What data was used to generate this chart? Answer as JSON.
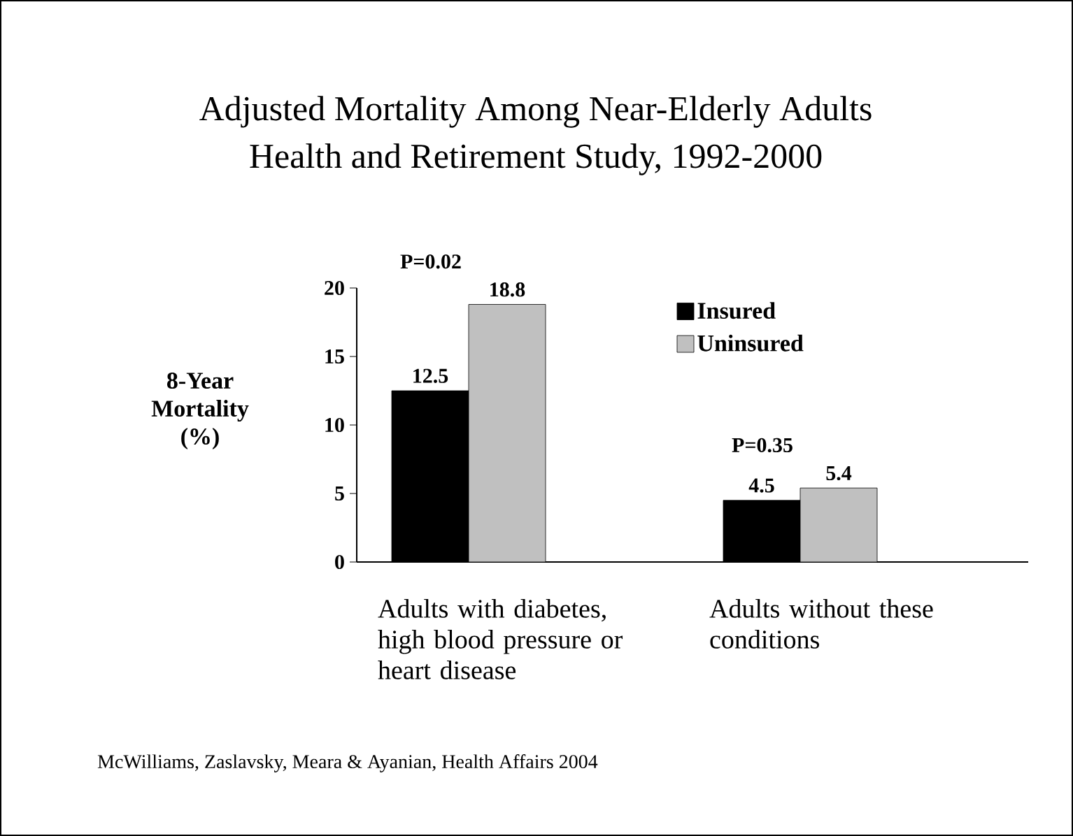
{
  "chart_data": {
    "type": "bar",
    "title": "Adjusted Mortality Among Near-Elderly Adults",
    "subtitle": "Health and Retirement Study, 1992-2000",
    "ylabel": "8-Year Mortality (%)",
    "categories": [
      "Adults with diabetes, high blood pressure or heart disease",
      "Adults without these conditions"
    ],
    "series": [
      {
        "name": "Insured",
        "color": "#000000",
        "values": [
          12.5,
          4.5
        ],
        "value_labels": [
          "12.5",
          "4.5"
        ]
      },
      {
        "name": "Uninsured",
        "color": "#c0c0c0",
        "values": [
          18.8,
          5.4
        ],
        "value_labels": [
          "18.8",
          "5.4"
        ]
      }
    ],
    "ylim": [
      0,
      20
    ],
    "yticks": [
      0,
      5,
      10,
      15,
      20
    ],
    "legend": "top right",
    "annotations": [
      "P=0.02",
      "P=0.35",
      "McWilliams, Zaslavsky, Meara & Ayanian, Health Affairs 2004"
    ]
  }
}
